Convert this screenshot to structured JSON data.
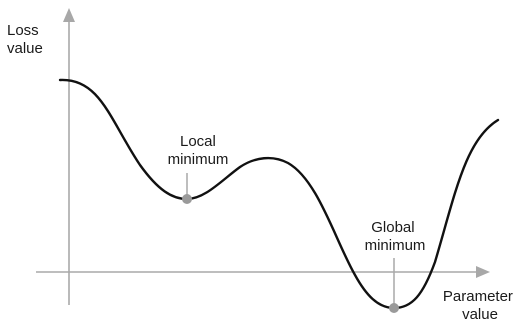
{
  "axes": {
    "y_label_line1": "Loss",
    "y_label_line2": "value",
    "x_label_line1": "Parameter",
    "x_label_line2": "value"
  },
  "annotations": {
    "local": {
      "line1": "Local",
      "line2": "minimum"
    },
    "global": {
      "line1": "Global",
      "line2": "minimum"
    }
  },
  "colors": {
    "axis": "#a8a8a8",
    "curve": "#111111",
    "marker": "#9a9a9a",
    "text": "#1a1a1a"
  }
}
